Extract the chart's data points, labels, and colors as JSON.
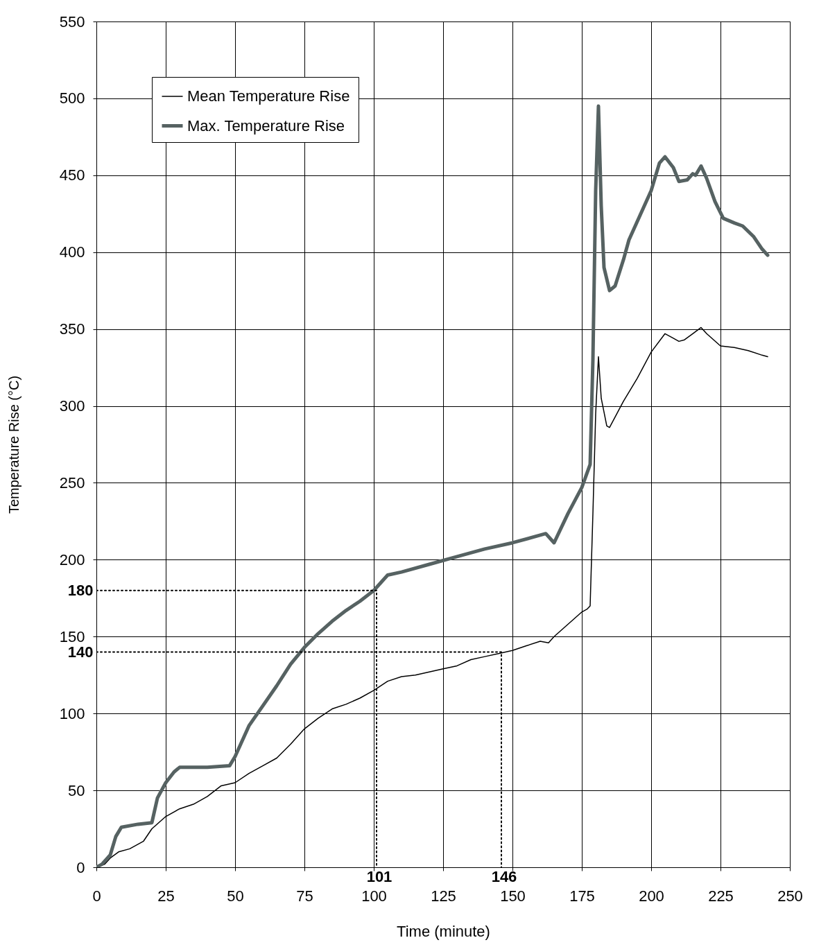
{
  "chart_data": {
    "type": "line",
    "xlabel": "Time (minute)",
    "ylabel": "Temperature Rise (°C)",
    "xlim": [
      0,
      250
    ],
    "xticks": [
      0,
      25,
      50,
      75,
      100,
      125,
      150,
      175,
      200,
      225,
      250
    ],
    "ylim": [
      0,
      550
    ],
    "yticks": [
      0,
      50,
      100,
      140,
      150,
      180,
      200,
      250,
      300,
      350,
      400,
      450,
      500,
      550
    ],
    "grid": true,
    "legend": "top left",
    "line_style": "solid",
    "marker": "none",
    "series": [
      {
        "name": "Mean Temperature Rise",
        "color": "#000000",
        "x": [
          0,
          3,
          5,
          8,
          12,
          17,
          20,
          25,
          30,
          35,
          40,
          45,
          50,
          55,
          60,
          65,
          70,
          75,
          80,
          85,
          90,
          95,
          100,
          105,
          110,
          115,
          120,
          125,
          130,
          135,
          140,
          145,
          150,
          155,
          160,
          163,
          165,
          170,
          175,
          177,
          178,
          179,
          180,
          181,
          182,
          184,
          185,
          190,
          195,
          200,
          205,
          208,
          210,
          212,
          215,
          218,
          220,
          225,
          230,
          235,
          240,
          242
        ],
        "values": [
          0,
          2,
          6,
          10,
          12,
          17,
          25,
          33,
          38,
          41,
          46,
          53,
          55,
          61,
          66,
          71,
          80,
          90,
          97,
          103,
          106,
          110,
          115,
          121,
          124,
          125,
          127,
          129,
          131,
          135,
          137,
          139,
          141,
          144,
          147,
          146,
          150,
          158,
          166,
          168,
          170,
          230,
          295,
          332,
          305,
          287,
          286,
          303,
          318,
          335,
          347,
          344,
          342,
          343,
          347,
          351,
          347,
          339,
          338,
          336,
          333,
          332
        ]
      },
      {
        "name": "Max. Temperature Rise",
        "color": "#566262",
        "x": [
          0,
          2,
          5,
          7,
          9,
          15,
          20,
          22,
          25,
          28,
          30,
          40,
          48,
          50,
          55,
          60,
          65,
          70,
          75,
          80,
          85,
          90,
          95,
          100,
          105,
          110,
          120,
          130,
          140,
          150,
          160,
          162,
          165,
          170,
          175,
          178,
          179,
          180,
          181,
          182,
          183,
          185,
          187,
          190,
          192,
          200,
          203,
          205,
          208,
          210,
          213,
          215,
          216,
          218,
          220,
          223,
          226,
          230,
          233,
          237,
          240,
          242
        ],
        "values": [
          0,
          2,
          8,
          20,
          26,
          28,
          29,
          45,
          55,
          62,
          65,
          65,
          66,
          72,
          92,
          105,
          118,
          132,
          143,
          152,
          160,
          167,
          173,
          180,
          190,
          192,
          197,
          202,
          207,
          211,
          216,
          217,
          211,
          230,
          247,
          262,
          330,
          440,
          495,
          430,
          390,
          375,
          378,
          395,
          408,
          440,
          458,
          462,
          455,
          446,
          447,
          451,
          450,
          456,
          448,
          433,
          422,
          419,
          417,
          410,
          402,
          398
        ]
      },
      {
        "type": "line",
        "line_style": "dotted",
        "color": "#000000",
        "x": [
          0,
          101,
          101
        ],
        "values": [
          180,
          180,
          0
        ]
      },
      {
        "type": "line",
        "line_style": "dotted",
        "color": "#000000",
        "x": [
          0,
          146,
          146
        ],
        "values": [
          140,
          140,
          0
        ]
      }
    ],
    "annotations": [
      {
        "text": "101",
        "x": 101,
        "y": 0
      },
      {
        "text": "146",
        "x": 146,
        "y": 0
      }
    ]
  }
}
